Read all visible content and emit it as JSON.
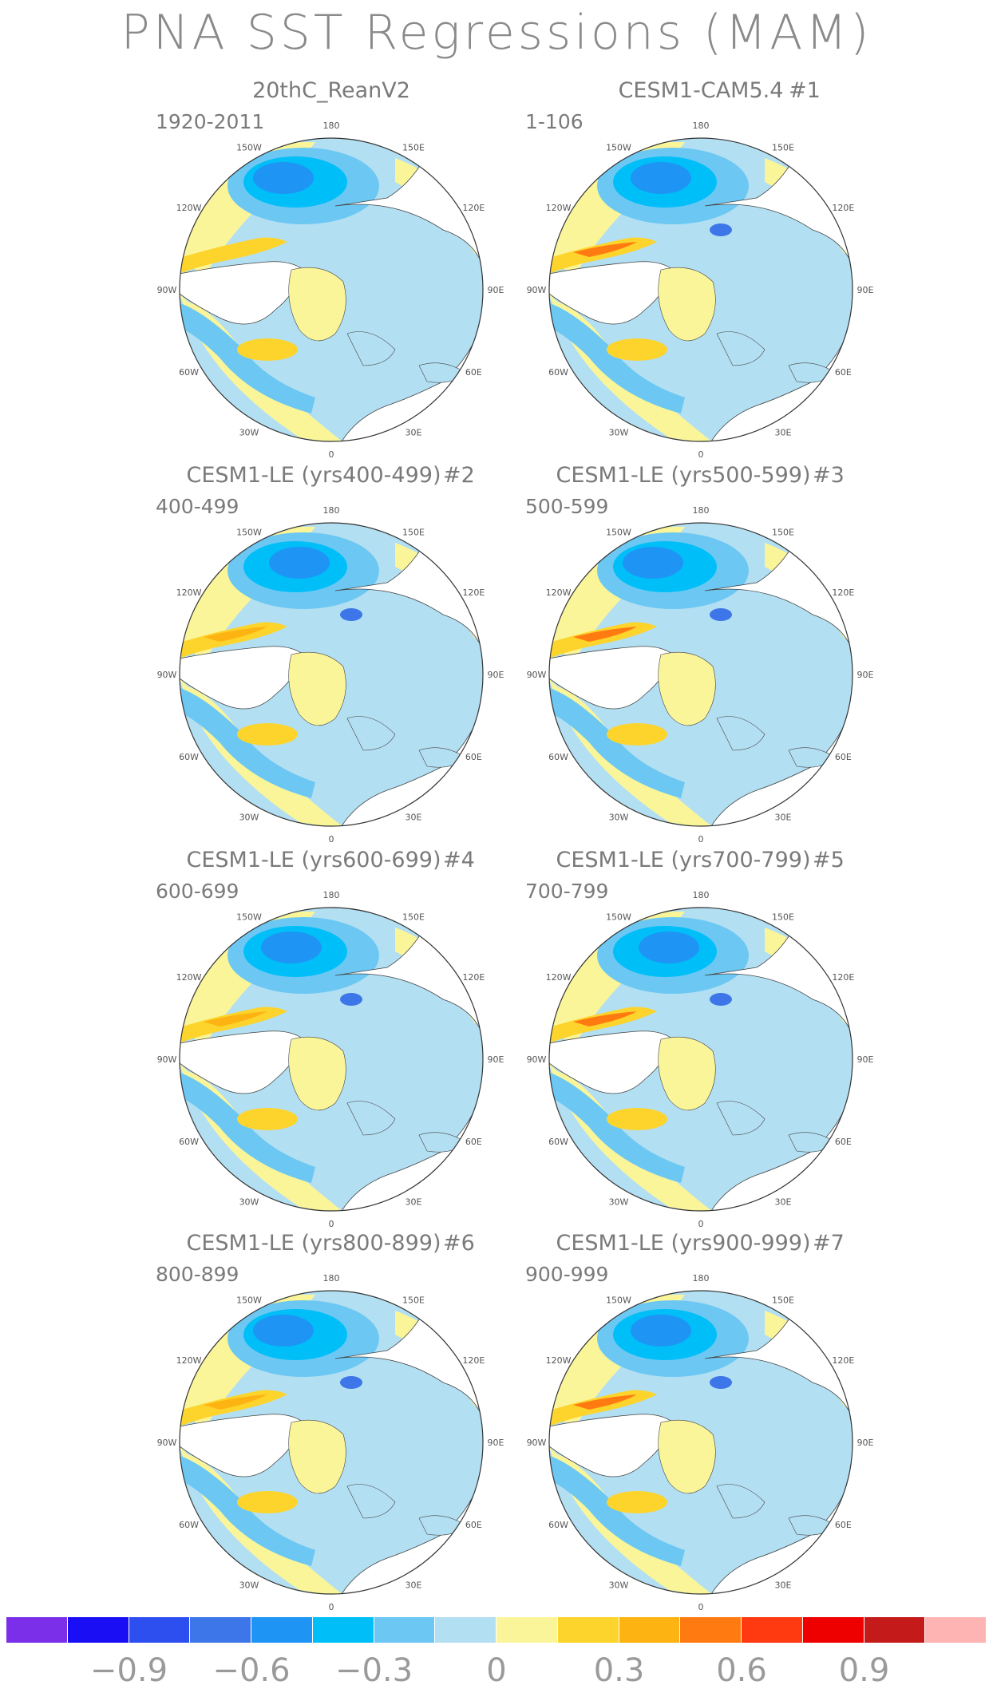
{
  "title": "PNA SST Regressions (MAM)",
  "longitude_labels": {
    "top": "180",
    "top_right": "150E",
    "right_upper": "120E",
    "right": "90E",
    "right_lower": "60E",
    "bottom_right": "30E",
    "bottom": "0",
    "bottom_left": "30W",
    "left_lower": "60W",
    "left": "90W",
    "left_upper": "120W",
    "top_left": "150W"
  },
  "panels": [
    {
      "title": "20thC_ReanV2",
      "number": "",
      "years": "1920-2011"
    },
    {
      "title": "CESM1-CAM5.4",
      "number": "#1",
      "years": "1-106"
    },
    {
      "title": "CESM1-LE (yrs400-499)",
      "number": "#2",
      "years": "400-499"
    },
    {
      "title": "CESM1-LE (yrs500-599)",
      "number": "#3",
      "years": "500-599"
    },
    {
      "title": "CESM1-LE (yrs600-699)",
      "number": "#4",
      "years": "600-699"
    },
    {
      "title": "CESM1-LE (yrs700-799)",
      "number": "#5",
      "years": "700-799"
    },
    {
      "title": "CESM1-LE (yrs800-899)",
      "number": "#6",
      "years": "800-899"
    },
    {
      "title": "CESM1-LE (yrs900-999)",
      "number": "#7",
      "years": "900-999"
    }
  ],
  "colorbar": {
    "colors": [
      "#7b2fe8",
      "#1a0ef5",
      "#2e4ff0",
      "#3d76e8",
      "#1e94f5",
      "#00bff8",
      "#6cc8f2",
      "#b3dff2",
      "#fbf59a",
      "#fdd42c",
      "#fdb311",
      "#ff7a10",
      "#ff3a10",
      "#ee0000",
      "#c41a1a",
      "#ffb4b4"
    ],
    "labels": [
      "−0.9",
      "−0.6",
      "−0.3",
      "0",
      "0.3",
      "0.6",
      "0.9"
    ]
  }
}
